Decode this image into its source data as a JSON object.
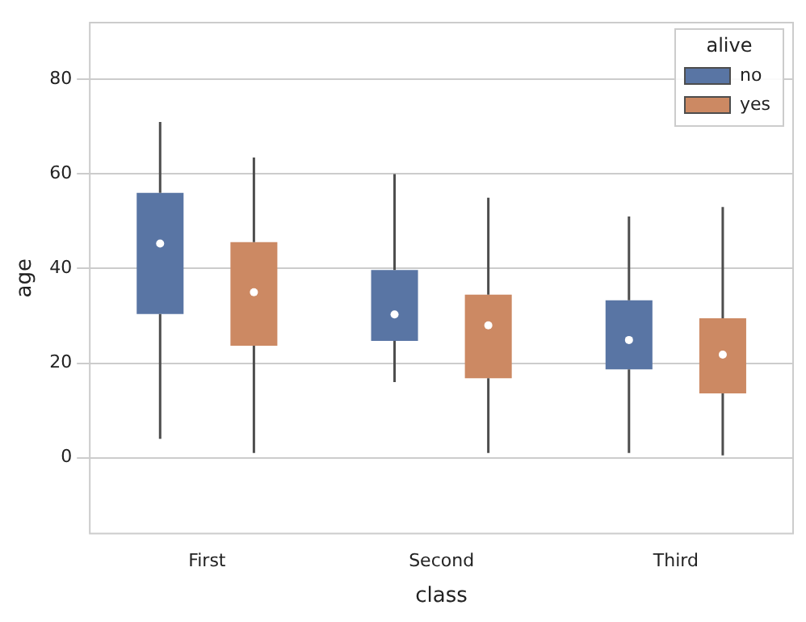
{
  "chart_data": {
    "type": "box",
    "xlabel": "class",
    "ylabel": "age",
    "legend_title": "alive",
    "categories": [
      "First",
      "Second",
      "Third"
    ],
    "series": [
      {
        "name": "no",
        "color": "#5975a4",
        "boxes": [
          {
            "low": 4,
            "q1": 30.4,
            "median": 45.3,
            "q3": 56,
            "high": 71
          },
          {
            "low": 16,
            "q1": 24.7,
            "median": 30.3,
            "q3": 39.7,
            "high": 60
          },
          {
            "low": 1,
            "q1": 18.7,
            "median": 24.9,
            "q3": 33.3,
            "high": 51
          }
        ]
      },
      {
        "name": "yes",
        "color": "#cc8963",
        "boxes": [
          {
            "low": 1,
            "q1": 23.7,
            "median": 35,
            "q3": 45.6,
            "high": 63.5
          },
          {
            "low": 1,
            "q1": 16.8,
            "median": 28,
            "q3": 34.5,
            "high": 55
          },
          {
            "low": 0.5,
            "q1": 13.6,
            "median": 21.8,
            "q3": 29.5,
            "high": 53
          }
        ]
      }
    ],
    "ylim": [
      -16,
      92
    ],
    "yticks": [
      0,
      20,
      40,
      60,
      80
    ],
    "grid": "y",
    "legend": "top right"
  }
}
